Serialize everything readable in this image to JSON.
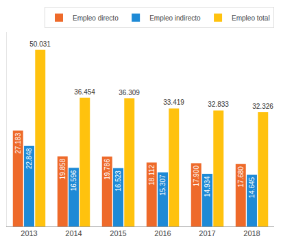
{
  "chart_data": {
    "type": "bar",
    "categories": [
      "2013",
      "2014",
      "2015",
      "2016",
      "2017",
      "2018"
    ],
    "series": [
      {
        "name": "Empleo directo",
        "color": "#ee6a2a",
        "values": [
          27183,
          19858,
          19786,
          18112,
          17900,
          17680
        ],
        "value_labels": [
          "27.183",
          "19.858",
          "19.786",
          "18.112",
          "17.900",
          "17.680"
        ]
      },
      {
        "name": "Empleo indirecto",
        "color": "#1e8ad6",
        "values": [
          22848,
          16596,
          16523,
          15307,
          14934,
          14645
        ],
        "value_labels": [
          "22.848",
          "16.596",
          "16.523",
          "15.307",
          "14.934",
          "14.645"
        ]
      },
      {
        "name": "Empleo total",
        "color": "#ffc20e",
        "values": [
          50031,
          36454,
          36309,
          33419,
          32833,
          32326
        ],
        "value_labels": [
          "50.031",
          "36.454",
          "36.309",
          "33.419",
          "32.833",
          "32.326"
        ]
      }
    ],
    "ylim": [
      0,
      55000
    ],
    "yticks": [],
    "grid": false,
    "legend": "top-right",
    "data_labels": true,
    "tick_labels": "x"
  }
}
